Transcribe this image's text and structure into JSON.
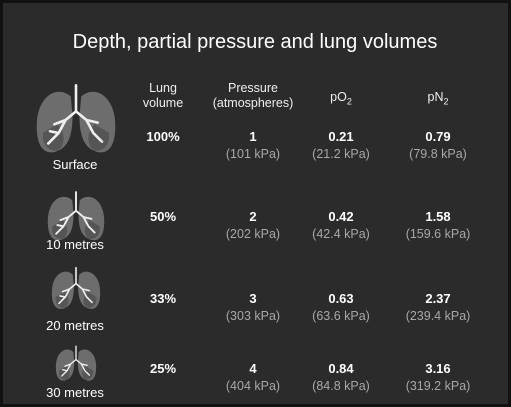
{
  "title": "Depth, partial pressure and lung volumes",
  "headers": {
    "lung_volume": [
      "Lung",
      "volume"
    ],
    "pressure": [
      "Pressure",
      "(atmospheres)"
    ],
    "po2": {
      "text": "pO",
      "sub": "2"
    },
    "pn2": {
      "text": "pN",
      "sub": "2"
    }
  },
  "rows": [
    {
      "label": "Surface",
      "volume": "100%",
      "pressure": "1",
      "pressure_kpa": "(101 kPa)",
      "po2": "0.21",
      "po2_kpa": "(21.2 kPa)",
      "pn2": "0.79",
      "pn2_kpa": "(79.8 kPa)"
    },
    {
      "label": "10 metres",
      "volume": "50%",
      "pressure": "2",
      "pressure_kpa": "(202 kPa)",
      "po2": "0.42",
      "po2_kpa": "(42.4 kPa)",
      "pn2": "1.58",
      "pn2_kpa": "(159.6 kPa)"
    },
    {
      "label": "20 metres",
      "volume": "33%",
      "pressure": "3",
      "pressure_kpa": "(303 kPa)",
      "po2": "0.63",
      "po2_kpa": "(63.6 kPa)",
      "pn2": "2.37",
      "pn2_kpa": "(239.4 kPa)"
    },
    {
      "label": "30 metres",
      "volume": "25%",
      "pressure": "4",
      "pressure_kpa": "(404 kPa)",
      "po2": "0.84",
      "po2_kpa": "(84.8 kPa)",
      "pn2": "3.16",
      "pn2_kpa": "(319.2 kPa)"
    }
  ]
}
